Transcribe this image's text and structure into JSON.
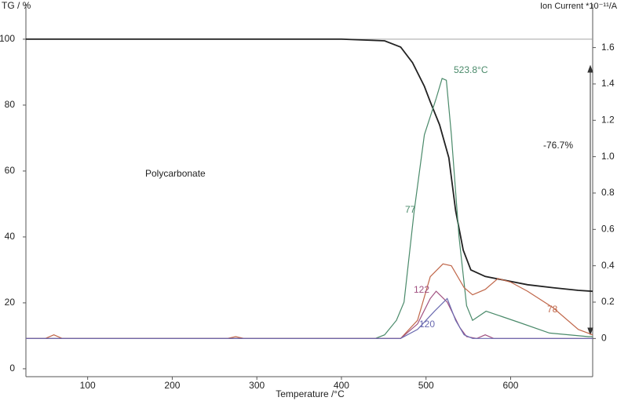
{
  "chart_data": {
    "type": "line",
    "y_title": "TG / %",
    "y2_title": "Ion Current *10⁻¹¹/A",
    "x_title": "Temperature /°C",
    "xlim": [
      27,
      697
    ],
    "xticks": [
      100,
      200,
      300,
      400,
      500,
      600
    ],
    "ylim": [
      -2.4,
      110.7
    ],
    "yticks": [
      0,
      20,
      40,
      60,
      80,
      100
    ],
    "y2lim": [
      -0.21,
      1.84
    ],
    "y2ticks": [
      0,
      0.2,
      0.4,
      0.6,
      0.8,
      {
        "value": 1.0,
        "label": "1.0"
      },
      1.2,
      1.4,
      1.6
    ],
    "series": [
      {
        "name": "TG",
        "color": "#222222",
        "x": [
          27,
          400,
          451,
          470,
          484,
          498,
          505,
          516,
          527,
          535,
          544,
          553,
          570,
          590,
          620,
          650,
          680,
          697
        ],
        "values": [
          100,
          100,
          99.5,
          97.6,
          92.9,
          85.7,
          81,
          74,
          64,
          48,
          36,
          30,
          28,
          27,
          25.5,
          24.6,
          23.8,
          23.5
        ]
      },
      {
        "name": "77",
        "color": "#4a8a6a",
        "axis": "y2",
        "x": [
          27,
          440,
          451,
          465,
          474,
          486,
          498,
          512,
          519,
          524,
          530,
          539,
          548,
          555,
          571,
          590,
          609,
          646,
          692,
          697
        ],
        "values": [
          0,
          0,
          0.02,
          0.1,
          0.2,
          0.7,
          1.12,
          1.32,
          1.43,
          1.42,
          1.12,
          0.56,
          0.18,
          0.1,
          0.15,
          0.12,
          0.09,
          0.03,
          0.01,
          0.01
        ]
      },
      {
        "name": "78",
        "color": "#c0674a",
        "axis": "y2",
        "x": [
          27,
          50,
          60,
          70,
          265,
          275,
          285,
          470,
          490,
          505,
          520,
          530,
          545,
          555,
          570,
          585,
          600,
          620,
          650,
          680,
          697
        ],
        "values": [
          0,
          0,
          0.02,
          0,
          0,
          0.01,
          0,
          0,
          0.1,
          0.34,
          0.41,
          0.4,
          0.28,
          0.24,
          0.27,
          0.33,
          0.31,
          0.26,
          0.17,
          0.05,
          0.02
        ]
      },
      {
        "name": "122",
        "color": "#a05080",
        "axis": "y2",
        "x": [
          27,
          470,
          490,
          505,
          512,
          525,
          540,
          548,
          560,
          570,
          580,
          697
        ],
        "values": [
          0,
          0,
          0.08,
          0.22,
          0.26,
          0.2,
          0.06,
          0.01,
          0,
          0.02,
          0,
          0
        ]
      },
      {
        "name": "120",
        "color": "#6a6ab0",
        "axis": "y2",
        "x": [
          27,
          470,
          490,
          510,
          525,
          535,
          545,
          555,
          697
        ],
        "values": [
          0,
          0,
          0.05,
          0.15,
          0.22,
          0.1,
          0.02,
          0,
          0
        ]
      }
    ],
    "annotations": [
      "523.8°C",
      "-76.7%",
      "Polycarbonate"
    ]
  }
}
